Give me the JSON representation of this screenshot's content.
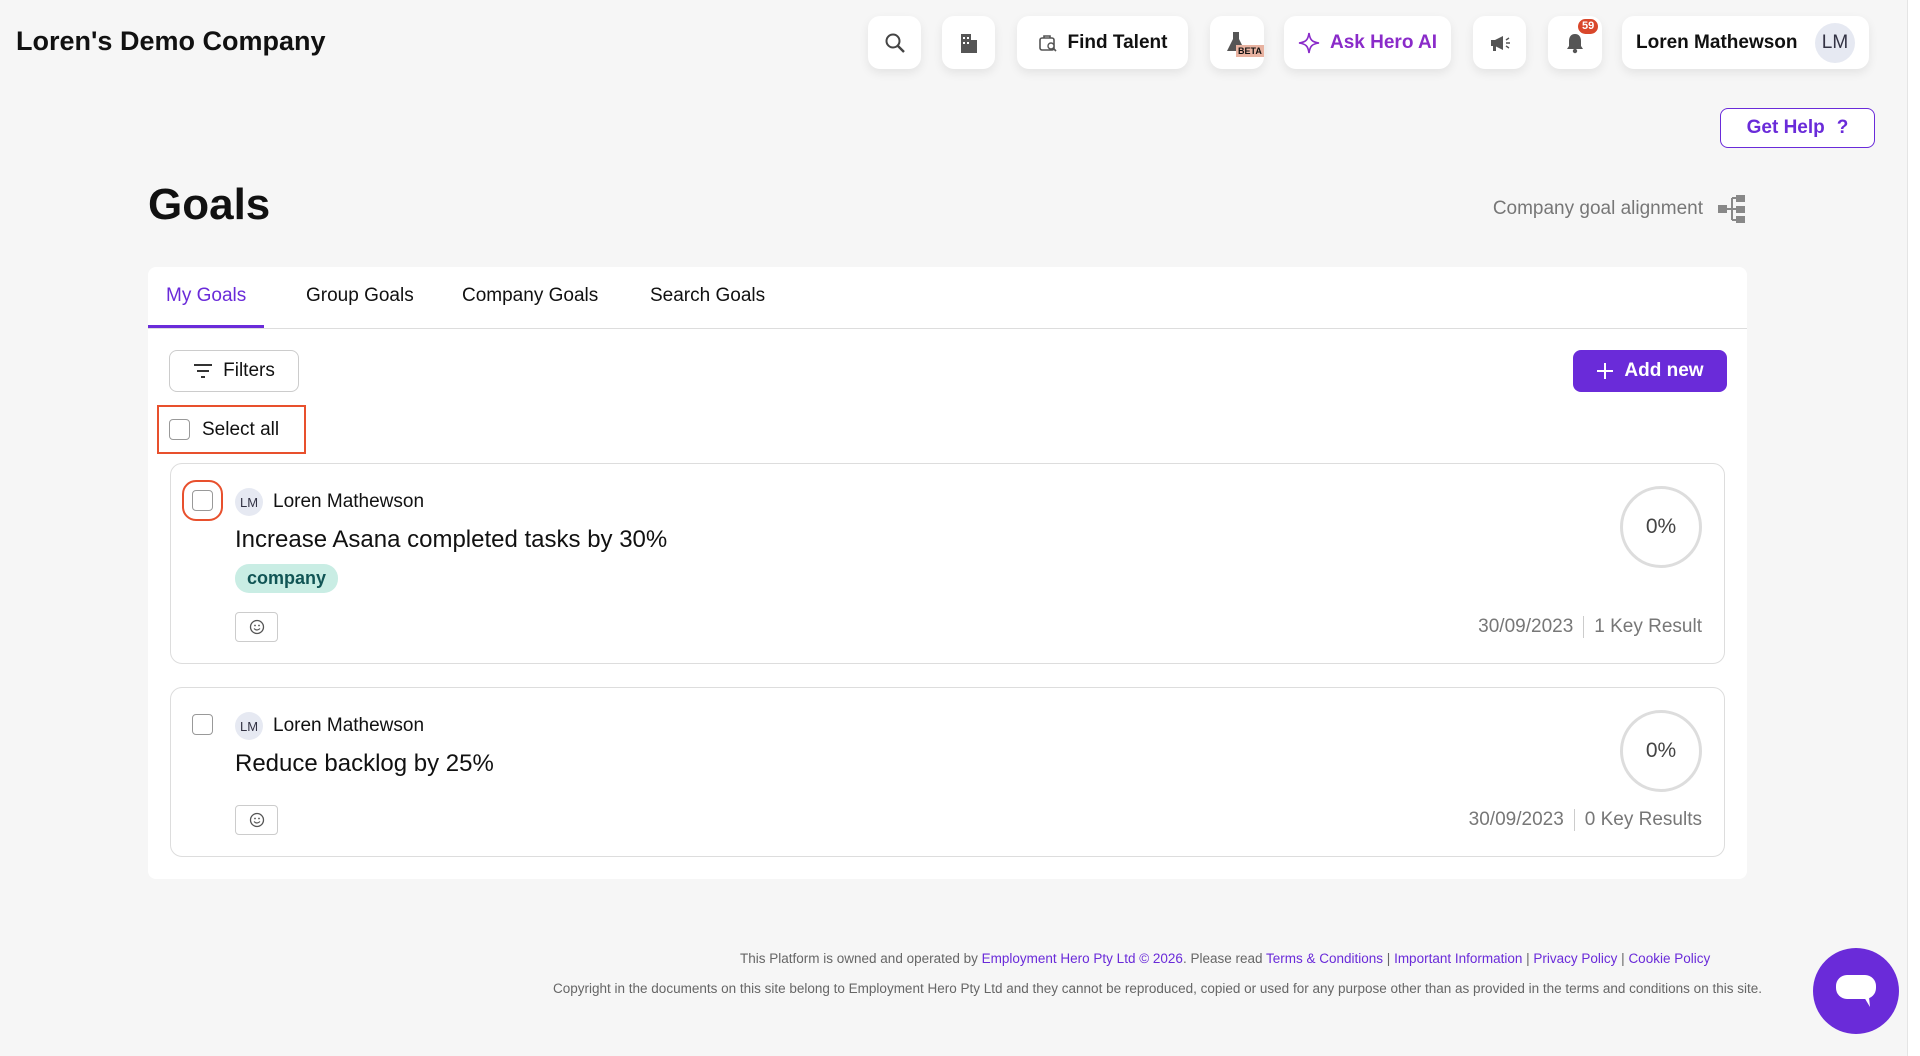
{
  "header": {
    "company": "Loren's Demo Company",
    "find_talent": "Find Talent",
    "beta": "BETA",
    "ask_ai": "Ask Hero AI",
    "notif_count": "59",
    "user_name": "Loren Mathewson",
    "user_initials": "LM",
    "get_help": "Get Help",
    "help_icon": "?"
  },
  "page": {
    "title": "Goals",
    "alignment": "Company goal alignment"
  },
  "tabs": [
    {
      "label": "My Goals",
      "active": true
    },
    {
      "label": "Group Goals"
    },
    {
      "label": "Company Goals"
    },
    {
      "label": "Search Goals"
    }
  ],
  "toolbar": {
    "filters": "Filters",
    "add_new": "Add new",
    "select_all": "Select all"
  },
  "goals": [
    {
      "owner": "Loren Mathewson",
      "initials": "LM",
      "title": "Increase Asana completed tasks by 30%",
      "tag": "company",
      "progress": "0%",
      "date": "30/09/2023",
      "key_results": "1 Key Result"
    },
    {
      "owner": "Loren Mathewson",
      "initials": "LM",
      "title": "Reduce backlog by 25%",
      "progress": "0%",
      "date": "30/09/2023",
      "key_results": "0 Key Results"
    }
  ],
  "footer": {
    "l1_pre": "This Platform is owned and operated by ",
    "l1_company": "Employment Hero Pty Ltd © 2026",
    "l1_mid": ". Please read ",
    "terms": "Terms & Conditions",
    "important": "Important Information",
    "privacy": "Privacy Policy",
    "cookie": "Cookie Policy",
    "line2": "Copyright in the documents on this site belong to Employment Hero Pty Ltd and they cannot be reproduced, copied or used for any purpose other than as provided in the terms and conditions on this site."
  },
  "colors": {
    "accent": "#6a2bd9",
    "highlight": "#e8502d",
    "tag_bg": "#c9ede4",
    "badge": "#d9472b"
  }
}
